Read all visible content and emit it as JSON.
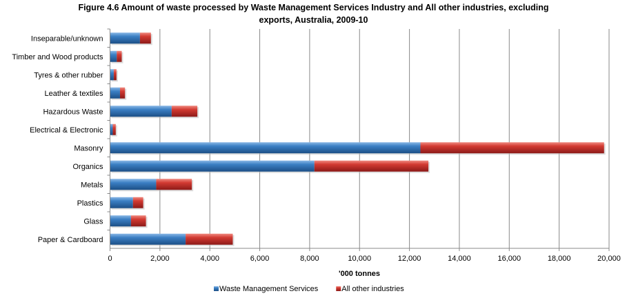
{
  "chart_data": {
    "type": "bar",
    "orientation": "horizontal",
    "stacked": true,
    "title_line1": "Figure 4.6 Amount of waste processed  by Waste Management Services Industry and All other industries, excluding",
    "title_line2": "exports, Australia, 2009-10",
    "xlabel": "'000 tonnes",
    "ylabel": "",
    "xlim": [
      0,
      20000
    ],
    "xticks": [
      "0",
      "2,000",
      "4,000",
      "6,000",
      "8,000",
      "10,000",
      "12,000",
      "14,000",
      "16,000",
      "18,000",
      "20,000"
    ],
    "grid": "vertical",
    "legend_position": "bottom",
    "categories": [
      "Inseparable/unknown",
      "Timber and Wood products",
      "Tyres & other rubber",
      "Leather & textiles",
      "Hazardous Waste",
      "Electrical & Electronic",
      "Masonry",
      "Organics",
      "Metals",
      "Plastics",
      "Glass",
      "Paper & Cardboard"
    ],
    "series": [
      {
        "name": "Waste Management Services",
        "color": "#2e6fb4",
        "values": [
          1200,
          270,
          150,
          400,
          2470,
          110,
          12440,
          8190,
          1850,
          920,
          840,
          3030
        ]
      },
      {
        "name": "All other industries",
        "color": "#c0302c",
        "values": [
          440,
          200,
          110,
          200,
          1030,
          120,
          7360,
          4570,
          1430,
          410,
          600,
          1890
        ]
      }
    ]
  }
}
